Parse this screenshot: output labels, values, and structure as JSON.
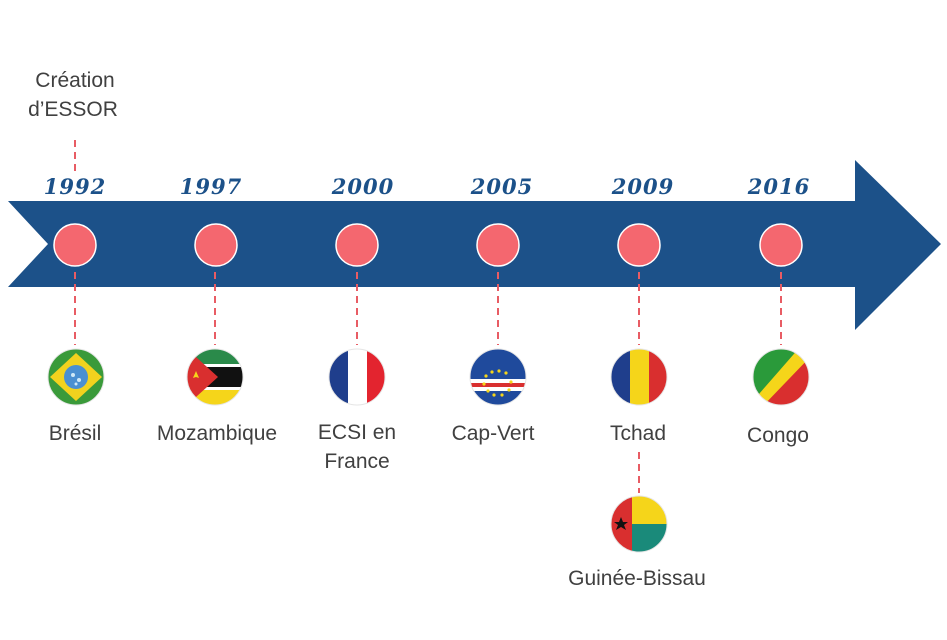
{
  "intro": {
    "text": "Création\nd’ESSOR"
  },
  "colors": {
    "arrow": "#1c5189",
    "dot": "#f4676f",
    "connector": "#e85c64",
    "text": "#404040"
  },
  "milestones": [
    {
      "year": "1992",
      "label": "Brésil",
      "flag": "brazil-flag-icon"
    },
    {
      "year": "1997",
      "label": "Mozambique",
      "flag": "mozambique-flag-icon"
    },
    {
      "year": "2000",
      "label": "ECSI en\nFrance",
      "flag": "france-flag-icon"
    },
    {
      "year": "2005",
      "label": "Cap-Vert",
      "flag": "cape-verde-flag-icon"
    },
    {
      "year": "2009",
      "label": "Tchad",
      "flag": "chad-flag-icon",
      "extra": {
        "label": "Guinée-Bissau",
        "flag": "guinea-bissau-flag-icon"
      }
    },
    {
      "year": "2016",
      "label": "Congo",
      "flag": "congo-flag-icon"
    }
  ]
}
